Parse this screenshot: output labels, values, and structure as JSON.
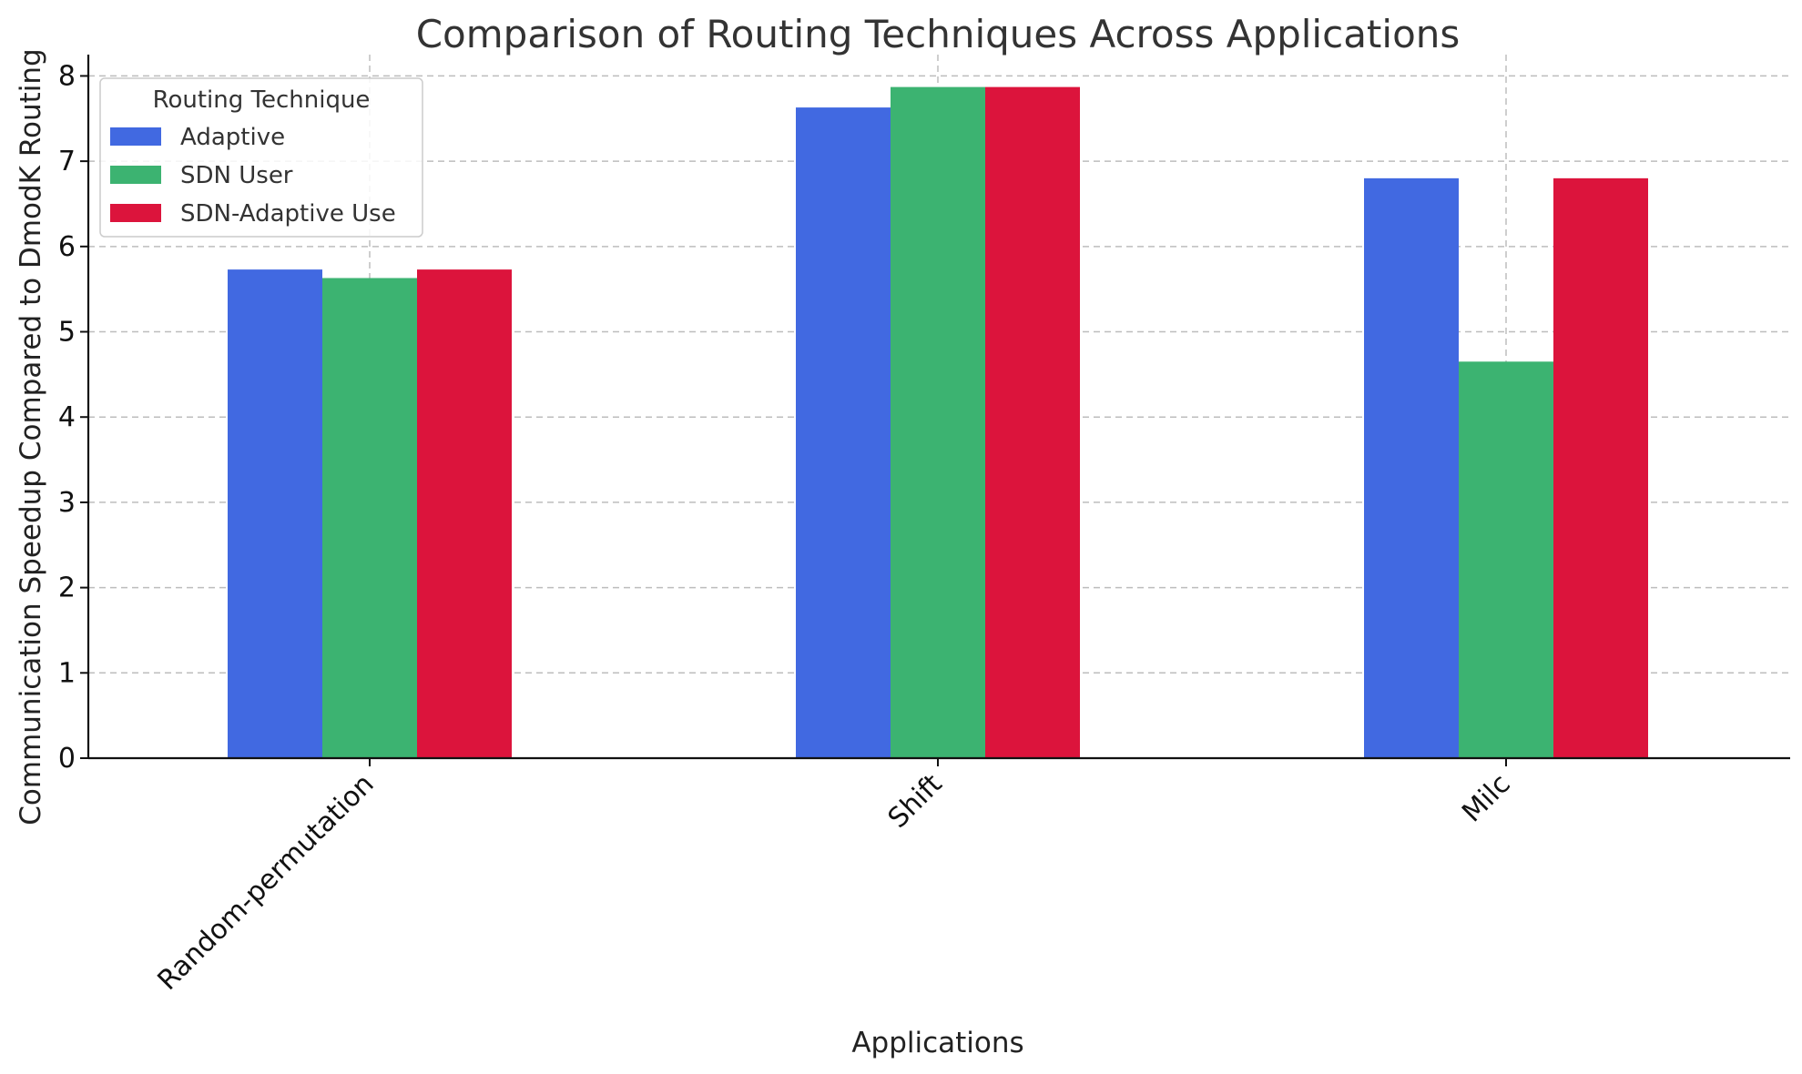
{
  "chart_data": {
    "type": "bar",
    "title": "Comparison of Routing Techniques Across Applications",
    "xlabel": "Applications",
    "ylabel": "Communication Speedup Compared to DmodK Routing",
    "categories": [
      "Random-permutation",
      "Shift",
      "Milc"
    ],
    "series": [
      {
        "name": "Adaptive",
        "color": "#4169e1",
        "values": [
          5.73,
          7.63,
          6.8
        ]
      },
      {
        "name": "SDN User",
        "color": "#3cb371",
        "values": [
          5.63,
          7.87,
          4.65
        ]
      },
      {
        "name": "SDN-Adaptive Use",
        "color": "#dc143c",
        "values": [
          5.73,
          7.87,
          6.8
        ]
      }
    ],
    "ylim": [
      0,
      8.25
    ],
    "yticks": [
      "0",
      "1",
      "2",
      "3",
      "4",
      "5",
      "6",
      "7",
      "8"
    ],
    "grid": true,
    "legend": {
      "title": "Routing Technique",
      "placement": "top-left"
    }
  }
}
